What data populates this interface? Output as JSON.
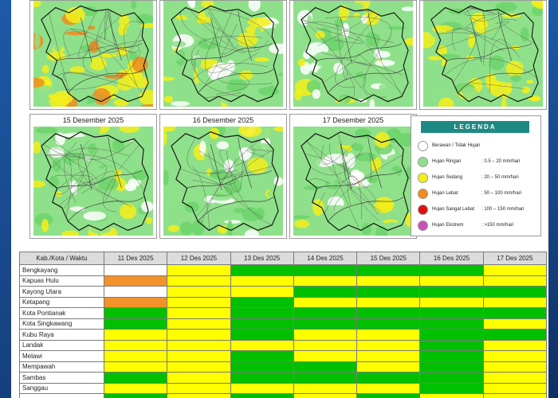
{
  "colors": {
    "green": "#00c000",
    "yellow": "#ffff00",
    "orange": "#f2922a",
    "white": "#ffffff",
    "legend_header": "#1f8a84"
  },
  "maps": {
    "top_row": [
      {
        "date": ""
      },
      {
        "date": ""
      },
      {
        "date": ""
      },
      {
        "date": ""
      }
    ],
    "bottom_row": [
      {
        "date": "15 Desember 2025"
      },
      {
        "date": "16 Desember 2025"
      },
      {
        "date": "17 Desember 2025"
      }
    ]
  },
  "legend": {
    "title": "LEGENDA",
    "items": [
      {
        "label": "Berawan / Tidak Hujan",
        "range": "",
        "color": "#ffffff"
      },
      {
        "label": "Hujan Ringan",
        "range": ": 0.5 – 20 mm/hari",
        "color": "#8fe08a"
      },
      {
        "label": "Hujan Sedang",
        "range": ": 20 – 50 mm/hari",
        "color": "#f4ee1a"
      },
      {
        "label": "Hujan Lebat",
        "range": ": 50 – 100 mm/hari",
        "color": "#ef8c1e"
      },
      {
        "label": "Hujan Sangat Lebat",
        "range": ": 100 – 150 mm/hari",
        "color": "#e01010"
      },
      {
        "label": "Hujan Ekstrem",
        "range": ": >150 mm/hari",
        "color": "#c850b8"
      }
    ]
  },
  "table": {
    "headers": [
      "Kab./Kota / Waktu",
      "11 Des 2025",
      "12 Des 2025",
      "13 Des 2025",
      "14 Des 2025",
      "15 Des 2025",
      "16 Des 2025",
      "17 Des 2025"
    ],
    "rows": [
      {
        "name": "Bengkayang",
        "cells": [
          "white",
          "yellow",
          "green",
          "green",
          "green",
          "green",
          "yellow"
        ]
      },
      {
        "name": "Kapuas Hulu",
        "cells": [
          "orange",
          "yellow",
          "yellow",
          "yellow",
          "yellow",
          "yellow",
          "yellow"
        ]
      },
      {
        "name": "Kayong Utara",
        "cells": [
          "white",
          "yellow",
          "yellow",
          "green",
          "green",
          "green",
          "green"
        ]
      },
      {
        "name": "Ketapang",
        "cells": [
          "orange",
          "yellow",
          "green",
          "yellow",
          "yellow",
          "yellow",
          "yellow"
        ]
      },
      {
        "name": "Kota Pontianak",
        "cells": [
          "green",
          "yellow",
          "green",
          "green",
          "green",
          "green",
          "green"
        ]
      },
      {
        "name": "Kota Singkawang",
        "cells": [
          "green",
          "yellow",
          "green",
          "green",
          "green",
          "green",
          "yellow"
        ]
      },
      {
        "name": "Kubu Raya",
        "cells": [
          "yellow",
          "yellow",
          "green",
          "yellow",
          "yellow",
          "green",
          "green"
        ]
      },
      {
        "name": "Landak",
        "cells": [
          "yellow",
          "yellow",
          "yellow",
          "yellow",
          "yellow",
          "green",
          "yellow"
        ]
      },
      {
        "name": "Melawi",
        "cells": [
          "yellow",
          "yellow",
          "green",
          "yellow",
          "yellow",
          "green",
          "yellow"
        ]
      },
      {
        "name": "Mempawah",
        "cells": [
          "yellow",
          "yellow",
          "green",
          "green",
          "yellow",
          "green",
          "yellow"
        ]
      },
      {
        "name": "Sambas",
        "cells": [
          "green",
          "yellow",
          "green",
          "green",
          "green",
          "green",
          "yellow"
        ]
      },
      {
        "name": "Sanggau",
        "cells": [
          "yellow",
          "yellow",
          "yellow",
          "yellow",
          "yellow",
          "green",
          "yellow"
        ]
      },
      {
        "name": "",
        "cells": [
          "green",
          "yellow",
          "green",
          "yellow",
          "green",
          "yellow",
          "yellow"
        ]
      }
    ]
  }
}
